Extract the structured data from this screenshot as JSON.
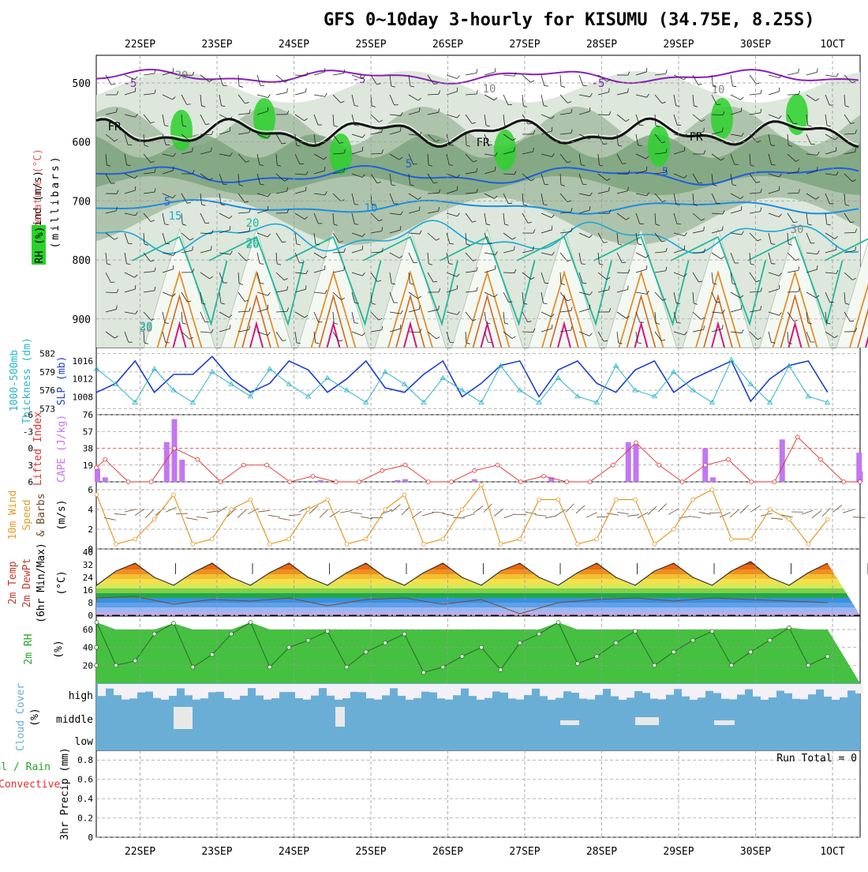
{
  "title": "GFS 0~10day 3-hourly for KISUMU (34.75E, 8.25S)",
  "days": [
    "22SEP",
    "23SEP",
    "24SEP",
    "25SEP",
    "26SEP",
    "27SEP",
    "28SEP",
    "29SEP",
    "30SEP",
    "1OCT"
  ],
  "colors": {
    "temp_contour": "#8a1fb8",
    "freeze": "#111111",
    "mid_temp": "#1f5fe0",
    "warm_temp": "#1aa8d8",
    "hot_temp": "#1fb89a",
    "orange": "#e0902a",
    "magenta": "#d4197e",
    "rh_light": "#dde7dc",
    "rh_mid": "#a8bfa6",
    "rh_dark": "#7aa27a",
    "rh_green": "#2bd12b",
    "slp": "#1f3fcc",
    "thickness": "#2ab5c9",
    "cape": "#c277f0",
    "lifted": "#e03030",
    "wind": "#e39a2a",
    "barb": "#6b4a2a",
    "rh2m": "#29a329",
    "cloud": "#6aaed6",
    "grid": "#9a9a9a"
  },
  "panels": {
    "upper": {
      "ylabel": "Wind (m/s)",
      "ylabel2": "Temperature (°C)",
      "ylabel3": "(millibars)",
      "rh_label": "RH (%)",
      "yticks": [
        "500",
        "600",
        "700",
        "800",
        "900"
      ],
      "contour_labels": [
        "-5",
        "-5",
        "-5",
        "FR",
        "FR",
        "FR",
        "5",
        "5",
        "5",
        "10",
        "15",
        "20",
        "20",
        "30",
        "30",
        "10",
        "30",
        "10",
        "20",
        "20"
      ]
    },
    "slp": {
      "left_label": "1000-500mb",
      "left_label2": "Thickness (dm)",
      "right_label": "SLP (mb)",
      "left_ticks": [
        "582",
        "579",
        "576",
        "573"
      ],
      "right_ticks": [
        "1016",
        "1012",
        "1008"
      ]
    },
    "cape": {
      "left_label": "Lifted Index",
      "right_label": "CAPE (J/kg)",
      "left_ticks": [
        "-6",
        "-3",
        "0",
        "3",
        "6"
      ],
      "right_ticks": [
        "76",
        "57",
        "38",
        "19"
      ]
    },
    "wind10m": {
      "label": "10m Wind",
      "label2": "Speed",
      "label3": "& Barbs",
      "units": "(m/s)",
      "yticks": [
        "6",
        "4",
        "2",
        "0"
      ]
    },
    "temp2m": {
      "label": "2m Temp",
      "label2": "2m DewPt",
      "label3": "(6hr Min/Max)",
      "units": "(°C)",
      "yticks": [
        "40",
        "32",
        "24",
        "16",
        "8",
        "0"
      ]
    },
    "rh2m": {
      "label": "2m RH",
      "units": "(%)",
      "yticks": [
        "60",
        "40",
        "20"
      ]
    },
    "cloud": {
      "label": "Cloud Cover",
      "units": "(%)",
      "levels": [
        "high",
        "middle",
        "low"
      ]
    },
    "precip": {
      "label": "Total / Rain",
      "label2": "Convective",
      "ylabel": "3hr Precip (mm)",
      "yticks": [
        "0.8",
        "0.6",
        "0.4",
        "0.2",
        "0"
      ],
      "run_total": "Run Total = 0"
    }
  },
  "chart_data": [
    {
      "type": "line",
      "title": "1000-500mb Thickness / SLP",
      "series": [
        {
          "name": "SLP (mb)",
          "x_day": [
            0,
            0.25,
            0.5,
            0.75,
            1.0,
            1.25,
            1.5,
            1.75,
            2.0,
            2.25,
            2.5,
            2.75,
            3.0,
            3.25,
            3.5,
            3.75,
            4.0,
            4.25,
            4.5,
            4.75,
            5.0,
            5.25,
            5.5,
            5.75,
            6.0,
            6.25,
            6.5,
            6.75,
            7.0,
            7.25,
            7.5,
            7.75,
            8.0,
            8.25,
            8.5,
            8.75,
            9.0,
            9.25,
            9.5
          ],
          "values": [
            1009,
            1011,
            1016,
            1009,
            1013,
            1013,
            1017,
            1012,
            1009,
            1011,
            1016,
            1014,
            1009,
            1012,
            1016,
            1010,
            1009,
            1013,
            1016,
            1008,
            1011,
            1015,
            1016,
            1008,
            1014,
            1016,
            1011,
            1009,
            1014,
            1016,
            1009,
            1012,
            1014,
            1016,
            1007,
            1012,
            1015,
            1016,
            1009
          ]
        },
        {
          "name": "1000-500mb Thickness (dm)",
          "x_day": [
            0,
            0.25,
            0.5,
            0.75,
            1.0,
            1.25,
            1.5,
            1.75,
            2.0,
            2.25,
            2.5,
            2.75,
            3.0,
            3.25,
            3.5,
            3.75,
            4.0,
            4.25,
            4.5,
            4.75,
            5.0,
            5.25,
            5.5,
            5.75,
            6.0,
            6.25,
            6.5,
            6.75,
            7.0,
            7.25,
            7.5,
            7.75,
            8.0,
            8.25,
            8.5,
            8.75,
            9.0,
            9.25,
            9.5
          ],
          "values": [
            579.5,
            577,
            574,
            579.5,
            576,
            574,
            579,
            577,
            575,
            579.5,
            577,
            575,
            578,
            576,
            574,
            579,
            577,
            574,
            578,
            576,
            574,
            580,
            576,
            574,
            578,
            575,
            574,
            580,
            576,
            575,
            579,
            576,
            574,
            581,
            577,
            574,
            580,
            575,
            574
          ]
        }
      ]
    },
    {
      "type": "bar",
      "title": "CAPE (J/kg)",
      "x_day": [
        -0.4,
        -0.3,
        0.5,
        0.6,
        0.7,
        1.1,
        2.5,
        3.5,
        3.6,
        4.5,
        5.5,
        6.5,
        6.6,
        7.5,
        7.6,
        8.5,
        8.6,
        9.5,
        9.6
      ],
      "values": [
        15,
        5,
        45,
        71,
        25,
        0,
        2,
        2,
        3,
        3,
        5,
        45,
        42,
        38,
        5,
        48,
        0,
        33,
        12
      ],
      "ylim": [
        0,
        76
      ]
    },
    {
      "type": "line",
      "title": "Lifted Index",
      "x_day": [
        -0.5,
        -0.3,
        0,
        0.3,
        0.6,
        0.9,
        1.2,
        1.5,
        1.8,
        2.1,
        2.4,
        2.7,
        3.0,
        3.3,
        3.6,
        3.9,
        4.2,
        4.5,
        4.8,
        5.1,
        5.4,
        5.7,
        6.0,
        6.3,
        6.6,
        6.9,
        7.2,
        7.5,
        7.8,
        8.1,
        8.4,
        8.7,
        9.0,
        9.3,
        9.6
      ],
      "values": [
        3.5,
        2,
        6,
        6,
        0,
        2,
        6,
        3,
        3,
        6,
        5,
        6,
        6,
        4,
        3,
        6,
        6,
        4,
        3,
        6,
        5,
        6,
        6,
        3,
        -1,
        3,
        6,
        3,
        2,
        6,
        6,
        -2,
        2,
        6,
        6
      ],
      "ylim": [
        6,
        -6
      ]
    },
    {
      "type": "line",
      "title": "10m Wind Speed (m/s)",
      "x_day": [
        0,
        0.25,
        0.5,
        0.75,
        1.0,
        1.25,
        1.5,
        1.75,
        2.0,
        2.25,
        2.5,
        2.75,
        3.0,
        3.25,
        3.5,
        3.75,
        4.0,
        4.25,
        4.5,
        4.75,
        5.0,
        5.25,
        5.5,
        5.75,
        6.0,
        6.25,
        6.5,
        6.75,
        7.0,
        7.25,
        7.5,
        7.75,
        8.0,
        8.25,
        8.5,
        8.75,
        9.0,
        9.25,
        9.5
      ],
      "values": [
        5.5,
        0.5,
        1,
        3,
        5.5,
        0.5,
        1,
        4,
        5,
        0.5,
        1,
        4,
        5,
        0.5,
        1,
        4,
        5.5,
        0.5,
        1,
        4,
        6.5,
        0.5,
        1,
        5,
        5,
        0.5,
        1,
        5,
        5,
        0.5,
        2,
        5,
        6,
        1,
        1,
        4,
        3,
        0.5,
        3
      ],
      "ylim": [
        0,
        6.5
      ]
    },
    {
      "type": "area",
      "title": "2m Temp (°C)",
      "x_day": [
        -0.5,
        -0.25,
        0,
        0.25,
        0.5,
        0.75,
        1.0,
        1.25,
        1.5,
        1.75,
        2.0,
        2.25,
        2.5,
        2.75,
        3.0,
        3.25,
        3.5,
        3.75,
        4.0,
        4.25,
        4.5,
        4.75,
        5.0,
        5.25,
        5.5,
        5.75,
        6.0,
        6.25,
        6.5,
        6.75,
        7.0,
        7.25,
        7.5,
        7.75,
        8.0,
        8.25,
        8.5,
        8.75,
        9.0,
        9.25,
        9.5
      ],
      "values": [
        28,
        24,
        19,
        28,
        33,
        24,
        19,
        27,
        33,
        24,
        19,
        27,
        33,
        24,
        19,
        27,
        33,
        24,
        19,
        27,
        33,
        24,
        19,
        28,
        33,
        24,
        19,
        27,
        33,
        24,
        19,
        28,
        33,
        24,
        19,
        28,
        34,
        24,
        19,
        27,
        33
      ],
      "ylim": [
        0,
        40
      ]
    },
    {
      "type": "line",
      "title": "2m DewPt (°C)",
      "x_day": [
        -0.5,
        0,
        0.5,
        1.0,
        1.5,
        2.0,
        2.5,
        3.0,
        3.5,
        4.0,
        4.5,
        5.0,
        5.5,
        6.0,
        6.5,
        7.0,
        7.5,
        8.0,
        8.5,
        9.0,
        9.5
      ],
      "values": [
        8,
        11,
        12,
        7,
        10,
        9,
        11,
        6,
        10,
        11,
        7,
        10,
        1,
        8,
        10,
        11,
        9,
        11,
        10,
        9,
        8
      ],
      "ylim": [
        0,
        40
      ]
    },
    {
      "type": "area",
      "title": "2m RH (%)",
      "x_day": [
        -0.5,
        -0.25,
        0,
        0.25,
        0.5,
        0.75,
        1.0,
        1.25,
        1.5,
        1.75,
        2.0,
        2.25,
        2.5,
        2.75,
        3.0,
        3.25,
        3.5,
        3.75,
        4.0,
        4.25,
        4.5,
        4.75,
        5.0,
        5.25,
        5.5,
        5.75,
        6.0,
        6.25,
        6.5,
        6.75,
        7.0,
        7.25,
        7.5,
        7.75,
        8.0,
        8.25,
        8.5,
        8.75,
        9.0,
        9.25,
        9.5
      ],
      "values": [
        20,
        40,
        68,
        20,
        25,
        55,
        67,
        18,
        32,
        55,
        68,
        18,
        40,
        48,
        58,
        18,
        35,
        45,
        55,
        12,
        18,
        30,
        40,
        15,
        45,
        55,
        68,
        22,
        30,
        45,
        58,
        20,
        35,
        48,
        58,
        20,
        35,
        48,
        62,
        20,
        30
      ],
      "ylim": [
        0,
        75
      ]
    },
    {
      "type": "area",
      "title": "3hr Precip (mm)",
      "series": [
        {
          "name": "Total / Rain",
          "values": []
        },
        {
          "name": "Convective",
          "values": []
        }
      ],
      "ylim": [
        0,
        0.9
      ]
    }
  ]
}
